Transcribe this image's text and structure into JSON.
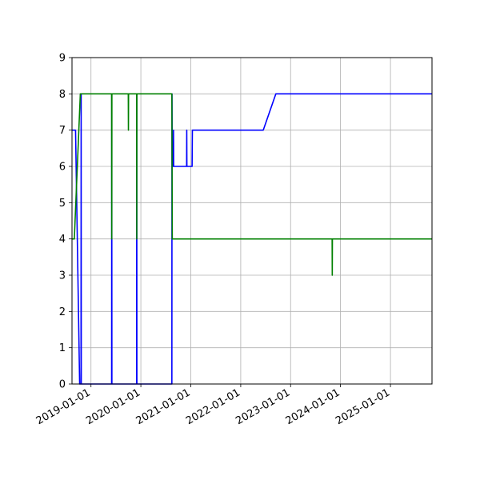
{
  "chart_data": {
    "type": "line",
    "title": "",
    "xlabel": "",
    "ylabel": "",
    "x_axis": {
      "type": "date",
      "range": [
        "2018-08-15",
        "2025-11-01"
      ],
      "ticks": [
        "2019-01-01",
        "2020-01-01",
        "2021-01-01",
        "2022-01-01",
        "2023-01-01",
        "2024-01-01",
        "2025-01-01"
      ]
    },
    "ylim": [
      0,
      9
    ],
    "yticks": [
      0,
      1,
      2,
      3,
      4,
      5,
      6,
      7,
      8,
      9
    ],
    "grid": true,
    "legend": "none",
    "series": [
      {
        "color": "#0000ff",
        "points": [
          [
            "2018-08-15",
            7
          ],
          [
            "2018-09-10",
            7
          ],
          [
            "2018-10-10",
            0
          ],
          [
            "2018-10-20",
            0
          ],
          [
            "2018-10-21",
            8
          ],
          [
            "2018-10-22",
            0
          ],
          [
            "2019-06-01",
            0
          ],
          [
            "2019-06-02",
            8
          ],
          [
            "2019-06-03",
            0
          ],
          [
            "2019-12-01",
            0
          ],
          [
            "2019-12-02",
            8
          ],
          [
            "2019-12-03",
            0
          ],
          [
            "2020-08-15",
            0
          ],
          [
            "2020-08-16",
            8
          ],
          [
            "2020-08-18",
            6
          ],
          [
            "2020-08-26",
            6
          ],
          [
            "2020-08-27",
            7
          ],
          [
            "2020-08-28",
            6
          ],
          [
            "2020-12-01",
            6
          ],
          [
            "2020-12-02",
            7
          ],
          [
            "2020-12-03",
            6
          ],
          [
            "2021-01-10",
            6
          ],
          [
            "2021-01-12",
            7
          ],
          [
            "2022-06-15",
            7
          ],
          [
            "2022-09-15",
            8
          ],
          [
            "2025-11-01",
            8
          ]
        ]
      },
      {
        "color": "#008000",
        "points": [
          [
            "2018-08-15",
            4
          ],
          [
            "2018-09-01",
            4
          ],
          [
            "2018-10-15",
            8
          ],
          [
            "2019-06-01",
            8
          ],
          [
            "2019-06-02",
            4
          ],
          [
            "2019-06-03",
            8
          ],
          [
            "2019-10-01",
            8
          ],
          [
            "2019-10-02",
            7
          ],
          [
            "2019-10-03",
            8
          ],
          [
            "2019-12-01",
            8
          ],
          [
            "2019-12-02",
            4
          ],
          [
            "2019-12-03",
            8
          ],
          [
            "2020-08-15",
            8
          ],
          [
            "2020-08-18",
            4
          ],
          [
            "2023-11-01",
            4
          ],
          [
            "2023-11-02",
            3
          ],
          [
            "2023-11-03",
            4
          ],
          [
            "2025-11-01",
            4
          ]
        ]
      }
    ]
  }
}
